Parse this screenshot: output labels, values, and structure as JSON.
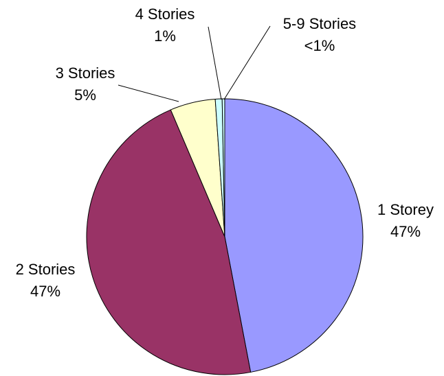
{
  "chart_data": {
    "type": "pie",
    "title": "",
    "start_angle_deg": 0,
    "direction": "clockwise",
    "legend": "none",
    "slices": [
      {
        "name": "1 Storey",
        "value": 47.0,
        "label": "47%",
        "color": "#9999FF"
      },
      {
        "name": "2 Stories",
        "value": 46.6,
        "label": "47%",
        "color": "#993366"
      },
      {
        "name": "3 Stories",
        "value": 5.3,
        "label": "5%",
        "color": "#FFFFCC"
      },
      {
        "name": "4 Stories",
        "value": 0.8,
        "label": "1%",
        "color": "#CCFFFF"
      },
      {
        "name": "5-9 Stories",
        "value": 0.3,
        "label": "<1%",
        "color": "#CCFFFF"
      }
    ]
  }
}
